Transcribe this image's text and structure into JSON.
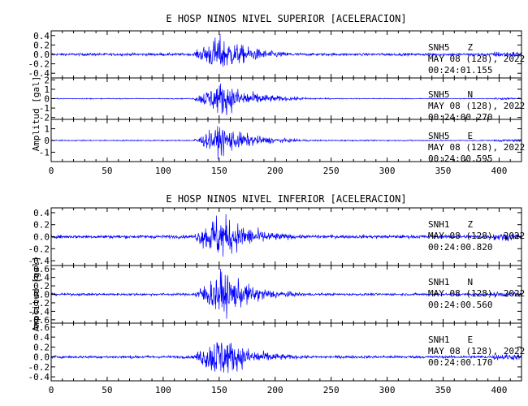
{
  "chart_data": [
    {
      "type": "line",
      "title": "E HOSP NINOS NIVEL SUPERIOR [ACELERACION]",
      "ylabel": "Amplitud  [gal]",
      "xticks": [
        0,
        50,
        100,
        150,
        200,
        250,
        300,
        350,
        400
      ],
      "xlim": [
        0,
        420
      ],
      "line_color": "#0000ff",
      "traces": [
        {
          "station": "SNH5",
          "component": "Z",
          "date": "MAY 08 (128), 2022",
          "time": "00:24:01.155",
          "ylim": [
            -0.5,
            0.5
          ],
          "yticks": [
            "0.4",
            "0.2",
            "0.0",
            "-0.2",
            "-0.4"
          ],
          "ytick_values": [
            0.4,
            0.2,
            0.0,
            -0.2,
            -0.4
          ],
          "noise_amp": 0.03,
          "peak_amp": 0.45,
          "peak_x": 150
        },
        {
          "station": "SNH5",
          "component": "N",
          "date": "MAY 08 (128), 2022",
          "time": "00:24:00.270",
          "ylim": [
            -2.2,
            2.2
          ],
          "yticks": [
            "2",
            "1",
            "0",
            "-1",
            "-2"
          ],
          "ytick_values": [
            2,
            1,
            0,
            -1,
            -2
          ],
          "noise_amp": 0.05,
          "peak_amp": 2.0,
          "peak_x": 152
        },
        {
          "station": "SNH5",
          "component": "E",
          "date": "MAY 08 (128), 2022",
          "time": "00:24:00.595",
          "ylim": [
            -1.8,
            1.8
          ],
          "yticks": [
            "1",
            "0",
            "-1"
          ],
          "ytick_values": [
            1,
            0,
            -1
          ],
          "noise_amp": 0.05,
          "peak_amp": 1.4,
          "peak_x": 152
        }
      ]
    },
    {
      "type": "line",
      "title": "E HOSP NINOS NIVEL INFERIOR [ACELERACION]",
      "ylabel": "Amplitud  [gal]",
      "xticks": [
        0,
        50,
        100,
        150,
        200,
        250,
        300,
        350,
        400
      ],
      "xlim": [
        0,
        420
      ],
      "line_color": "#0000ff",
      "traces": [
        {
          "station": "SNH1",
          "component": "Z",
          "date": "MAY 08 (128), 2022",
          "time": "00:24:00.820",
          "ylim": [
            -0.48,
            0.48
          ],
          "yticks": [
            "0.4",
            "0.2",
            "0.0",
            "-0.2",
            "-0.4"
          ],
          "ytick_values": [
            0.4,
            0.2,
            0.0,
            -0.2,
            -0.4
          ],
          "noise_amp": 0.03,
          "peak_amp": 0.45,
          "peak_x": 150
        },
        {
          "station": "SNH1",
          "component": "N",
          "date": "MAY 08 (128), 2022",
          "time": "00:24:00.560",
          "ylim": [
            -0.68,
            0.68
          ],
          "yticks": [
            "0.6",
            "0.4",
            "0.2",
            "0.0",
            "-0.2",
            "-0.4",
            "-0.6"
          ],
          "ytick_values": [
            0.6,
            0.4,
            0.2,
            0.0,
            -0.2,
            -0.4,
            -0.6
          ],
          "noise_amp": 0.03,
          "peak_amp": 0.6,
          "peak_x": 152
        },
        {
          "station": "SNH1",
          "component": "E",
          "date": "MAY 08 (128), 2022",
          "time": "00:24:00.170",
          "ylim": [
            -0.48,
            0.68
          ],
          "yticks": [
            "0.6",
            "0.4",
            "0.2",
            "0.0",
            "-0.2",
            "-0.4"
          ],
          "ytick_values": [
            0.6,
            0.4,
            0.2,
            0.0,
            -0.2,
            -0.4
          ],
          "noise_amp": 0.03,
          "peak_amp": 0.5,
          "peak_x": 150
        }
      ]
    }
  ]
}
